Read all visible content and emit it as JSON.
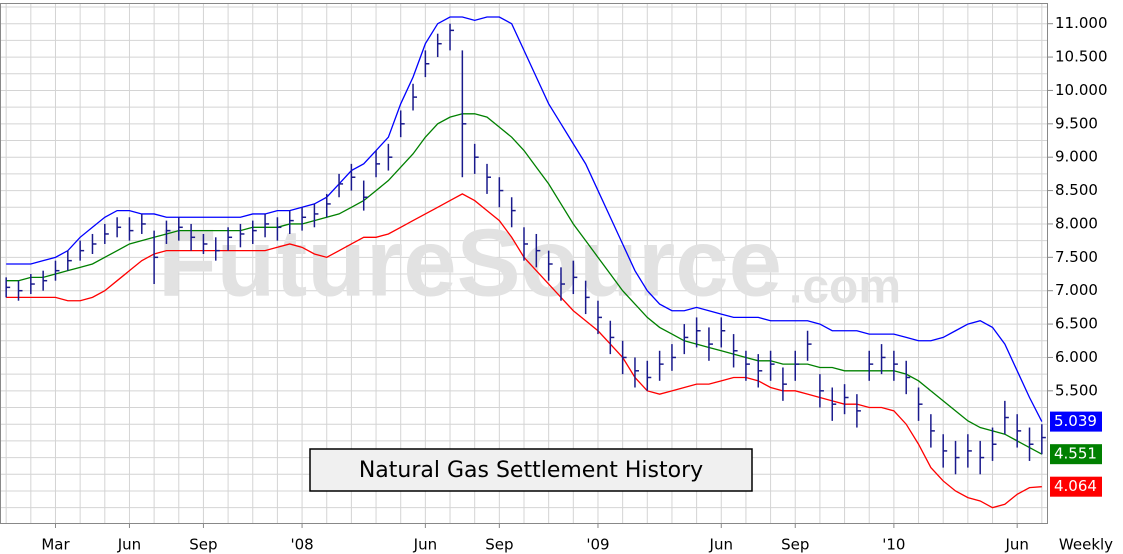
{
  "chart_data": {
    "type": "ohlc",
    "title": "Natural Gas Settlement History",
    "watermark": "FutureSource",
    "watermark_suffix": ".com",
    "period": "Weekly",
    "categories": [
      null,
      null,
      null,
      null,
      "Mar",
      null,
      null,
      null,
      null,
      null,
      "Jun",
      null,
      null,
      null,
      null,
      null,
      "Sep",
      null,
      null,
      null,
      null,
      null,
      null,
      null,
      "'08",
      null,
      null,
      null,
      null,
      null,
      null,
      null,
      null,
      null,
      "Jun",
      null,
      null,
      null,
      null,
      null,
      "Sep",
      null,
      null,
      null,
      null,
      null,
      null,
      null,
      "'09",
      null,
      null,
      null,
      null,
      null,
      null,
      null,
      null,
      null,
      "Jun",
      null,
      null,
      null,
      null,
      null,
      "Sep",
      null,
      null,
      null,
      null,
      null,
      null,
      null,
      "'10",
      null,
      null,
      null,
      null,
      null,
      null,
      null,
      null,
      null,
      "Jun",
      null,
      null
    ],
    "ohlc": {
      "color": "#1a1a8c",
      "high": [
        7.2,
        7.15,
        7.25,
        7.3,
        7.45,
        7.6,
        7.75,
        7.85,
        8.0,
        8.1,
        8.1,
        8.15,
        7.9,
        8.05,
        8.1,
        8.0,
        7.85,
        7.8,
        7.95,
        8.0,
        8.05,
        8.15,
        8.1,
        8.2,
        8.25,
        8.3,
        8.45,
        8.75,
        8.9,
        8.65,
        9.1,
        9.2,
        9.7,
        10.1,
        10.6,
        10.85,
        11.0,
        10.6,
        9.2,
        8.9,
        8.7,
        8.4,
        7.95,
        7.85,
        7.6,
        7.35,
        7.45,
        7.15,
        6.85,
        6.55,
        6.25,
        6.0,
        5.95,
        6.1,
        6.2,
        6.5,
        6.6,
        6.45,
        6.6,
        6.35,
        6.1,
        6.05,
        6.1,
        5.85,
        6.1,
        6.4,
        5.75,
        5.55,
        5.6,
        5.45,
        6.1,
        6.2,
        6.1,
        5.95,
        5.55,
        5.15,
        4.85,
        4.75,
        4.85,
        4.75,
        4.95,
        5.35,
        5.15,
        4.95,
        5.0
      ],
      "low": [
        6.9,
        6.85,
        6.95,
        7.0,
        7.15,
        7.3,
        7.45,
        7.55,
        7.7,
        7.8,
        7.75,
        7.85,
        7.1,
        7.7,
        7.75,
        7.6,
        7.55,
        7.45,
        7.6,
        7.65,
        7.7,
        7.8,
        7.75,
        7.85,
        7.9,
        7.95,
        8.1,
        8.4,
        8.5,
        8.2,
        8.7,
        8.8,
        9.3,
        9.7,
        10.2,
        10.5,
        10.6,
        8.7,
        8.75,
        8.45,
        8.25,
        7.95,
        7.45,
        7.35,
        7.15,
        6.85,
        6.95,
        6.65,
        6.35,
        6.05,
        5.75,
        5.55,
        5.5,
        5.65,
        5.8,
        6.05,
        6.15,
        5.95,
        6.15,
        5.85,
        5.65,
        5.55,
        5.65,
        5.35,
        5.65,
        5.95,
        5.25,
        5.05,
        5.15,
        4.95,
        5.65,
        5.75,
        5.65,
        5.45,
        5.05,
        4.65,
        4.35,
        4.25,
        4.35,
        4.25,
        4.45,
        4.85,
        4.65,
        4.45,
        4.55
      ],
      "close": [
        7.05,
        7.0,
        7.1,
        7.15,
        7.3,
        7.45,
        7.6,
        7.7,
        7.85,
        7.95,
        7.9,
        8.0,
        7.5,
        7.9,
        7.95,
        7.8,
        7.7,
        7.6,
        7.8,
        7.85,
        7.9,
        8.0,
        7.95,
        8.05,
        8.1,
        8.15,
        8.3,
        8.6,
        8.7,
        8.4,
        8.9,
        9.0,
        9.5,
        9.9,
        10.4,
        10.7,
        10.9,
        9.5,
        9.0,
        8.7,
        8.5,
        8.2,
        7.7,
        7.6,
        7.4,
        7.1,
        7.2,
        6.9,
        6.6,
        6.3,
        6.0,
        5.8,
        5.7,
        5.9,
        6.0,
        6.3,
        6.4,
        6.2,
        6.4,
        6.1,
        5.9,
        5.8,
        5.9,
        5.6,
        5.9,
        6.2,
        5.5,
        5.3,
        5.4,
        5.2,
        5.9,
        6.0,
        5.9,
        5.7,
        5.3,
        4.9,
        4.6,
        4.5,
        4.6,
        4.5,
        4.7,
        5.1,
        4.9,
        4.7,
        4.8
      ]
    },
    "series": [
      {
        "color": "#0000ff",
        "values": [
          7.4,
          7.4,
          7.4,
          7.45,
          7.5,
          7.6,
          7.8,
          7.95,
          8.1,
          8.2,
          8.2,
          8.15,
          8.15,
          8.1,
          8.1,
          8.1,
          8.1,
          8.1,
          8.1,
          8.1,
          8.15,
          8.15,
          8.2,
          8.2,
          8.25,
          8.3,
          8.4,
          8.6,
          8.8,
          8.9,
          9.1,
          9.3,
          9.8,
          10.2,
          10.7,
          11.0,
          11.1,
          11.1,
          11.05,
          11.1,
          11.1,
          11.0,
          10.6,
          10.2,
          9.8,
          9.5,
          9.2,
          8.9,
          8.5,
          8.1,
          7.7,
          7.3,
          7.0,
          6.8,
          6.7,
          6.7,
          6.75,
          6.7,
          6.65,
          6.6,
          6.6,
          6.6,
          6.55,
          6.55,
          6.55,
          6.55,
          6.5,
          6.4,
          6.4,
          6.4,
          6.35,
          6.35,
          6.35,
          6.3,
          6.25,
          6.25,
          6.3,
          6.4,
          6.5,
          6.55,
          6.45,
          6.2,
          5.8,
          5.4,
          5.039
        ]
      },
      {
        "color": "#008000",
        "values": [
          7.15,
          7.15,
          7.2,
          7.2,
          7.25,
          7.3,
          7.35,
          7.4,
          7.5,
          7.6,
          7.7,
          7.75,
          7.8,
          7.85,
          7.9,
          7.9,
          7.9,
          7.9,
          7.9,
          7.9,
          7.95,
          7.95,
          7.95,
          8.0,
          8.0,
          8.05,
          8.1,
          8.15,
          8.25,
          8.35,
          8.5,
          8.65,
          8.85,
          9.05,
          9.3,
          9.5,
          9.6,
          9.65,
          9.65,
          9.6,
          9.45,
          9.3,
          9.1,
          8.85,
          8.6,
          8.3,
          8.0,
          7.75,
          7.5,
          7.25,
          7.0,
          6.8,
          6.6,
          6.45,
          6.35,
          6.25,
          6.2,
          6.15,
          6.1,
          6.05,
          6.0,
          5.95,
          5.95,
          5.9,
          5.9,
          5.9,
          5.85,
          5.85,
          5.8,
          5.8,
          5.8,
          5.8,
          5.8,
          5.75,
          5.65,
          5.5,
          5.35,
          5.2,
          5.05,
          4.95,
          4.9,
          4.85,
          4.75,
          4.65,
          4.551
        ]
      },
      {
        "color": "#ff0000",
        "values": [
          6.9,
          6.9,
          6.9,
          6.9,
          6.9,
          6.85,
          6.85,
          6.9,
          7.0,
          7.15,
          7.3,
          7.45,
          7.55,
          7.6,
          7.6,
          7.6,
          7.6,
          7.6,
          7.6,
          7.6,
          7.6,
          7.6,
          7.65,
          7.7,
          7.65,
          7.55,
          7.5,
          7.6,
          7.7,
          7.8,
          7.8,
          7.85,
          7.95,
          8.05,
          8.15,
          8.25,
          8.35,
          8.45,
          8.35,
          8.2,
          8.05,
          7.8,
          7.5,
          7.3,
          7.1,
          6.9,
          6.7,
          6.55,
          6.4,
          6.2,
          6.0,
          5.7,
          5.5,
          5.45,
          5.5,
          5.55,
          5.6,
          5.6,
          5.65,
          5.7,
          5.7,
          5.65,
          5.55,
          5.5,
          5.5,
          5.45,
          5.4,
          5.35,
          5.3,
          5.3,
          5.25,
          5.25,
          5.2,
          5.0,
          4.7,
          4.35,
          4.15,
          4.0,
          3.9,
          3.85,
          3.75,
          3.8,
          3.95,
          4.05,
          4.064
        ]
      }
    ],
    "ylim": [
      3.52,
      11.31
    ],
    "yticks": [
      {
        "value": 5.5,
        "label": "5.500"
      },
      {
        "value": 6,
        "label": "6.000"
      },
      {
        "value": 6.5,
        "label": "6.500"
      },
      {
        "value": 7,
        "label": "7.000"
      },
      {
        "value": 7.5,
        "label": "7.500"
      },
      {
        "value": 8,
        "label": "8.000"
      },
      {
        "value": 8.5,
        "label": "8.500"
      },
      {
        "value": 9,
        "label": "9.000"
      },
      {
        "value": 9.5,
        "label": "9.500"
      },
      {
        "value": 10,
        "label": "10.000"
      },
      {
        "value": 10.5,
        "label": "10.500"
      },
      {
        "value": 11,
        "label": "11.000"
      }
    ],
    "grid_yticks": [
      3.75,
      4,
      4.25,
      4.5,
      4.75,
      5,
      5.25,
      5.75,
      6.25,
      6.75,
      7.25,
      7.75,
      8.25,
      8.75,
      9.25,
      9.75,
      10.25,
      10.75,
      11.25
    ],
    "grid": true
  }
}
